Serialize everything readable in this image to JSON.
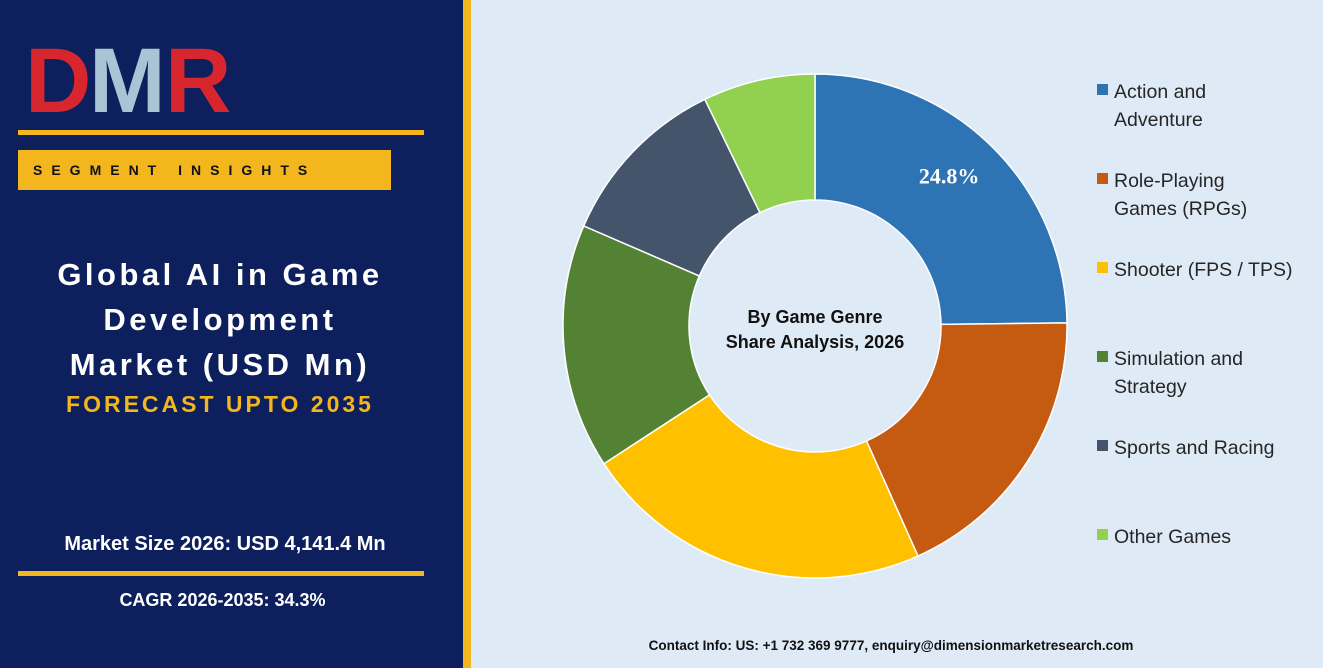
{
  "brand": {
    "logo_text": "DMR",
    "logo_colors": {
      "d": "#d8262f",
      "m": "#a9c4d4",
      "r": "#d8262f"
    }
  },
  "sidebar": {
    "segment_label": "SEGMENT INSIGHTS",
    "title_lines": [
      "Global AI in Game",
      "Development",
      "Market (USD Mn)"
    ],
    "forecast": "FORECAST UPTO 2035",
    "market_size": "Market Size 2026: USD 4,141.4 Mn",
    "cagr": "CAGR 2026-2035: 34.3%"
  },
  "colors": {
    "navy": "#0d1f5c",
    "gold": "#f3b61c",
    "panel_bg": "#deebf6"
  },
  "chart_data": {
    "type": "pie",
    "donut": true,
    "center_label": [
      "By Game Genre",
      "Share Analysis, 2026"
    ],
    "categories": [
      "Action and Adventure",
      "Role-Playing Games (RPGs)",
      "Shooter (FPS / TPS)",
      "Simulation and Strategy",
      "Sports and Racing",
      "Other Games"
    ],
    "values": [
      24.8,
      18.5,
      22.5,
      15.7,
      11.3,
      7.2
    ],
    "colors": [
      "#2e74b5",
      "#c55a11",
      "#ffc000",
      "#548235",
      "#44546a",
      "#92d050"
    ],
    "data_labels": [
      "24.8%",
      "",
      "",
      "",
      "",
      ""
    ],
    "legend_position": "right"
  },
  "footer": {
    "contact": "Contact Info: US: +1 732 369 9777, enquiry@dimensionmarketresearch.com"
  }
}
